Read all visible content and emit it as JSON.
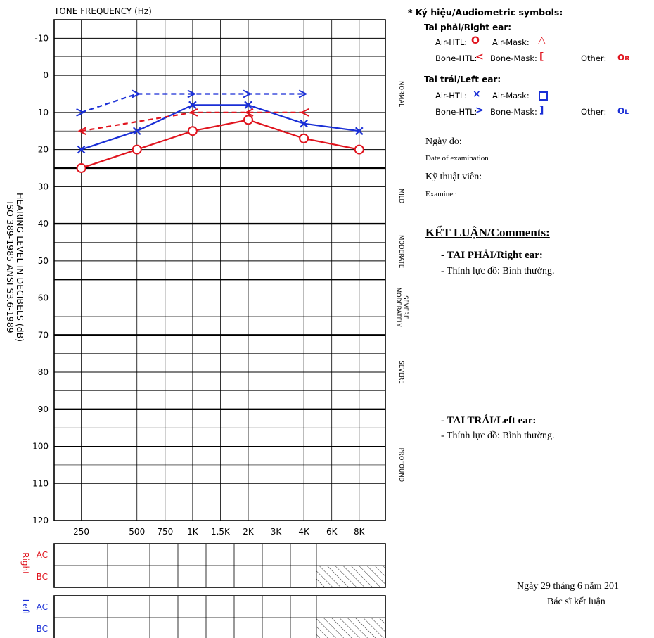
{
  "chart_data": {
    "type": "line",
    "title": "TONE FREQUENCY (Hz)",
    "ylabel_line1": "HEARING LEVEL IN DECIBELS (dB)",
    "ylabel_line2": "ISO 389-1985 ANSI S3.6-1989",
    "x_ticks": [
      "250",
      "500",
      "750",
      "1K",
      "1.5K",
      "2K",
      "3K",
      "4K",
      "6K",
      "8K"
    ],
    "y_ticks": [
      "-10",
      "0",
      "10",
      "20",
      "30",
      "40",
      "50",
      "60",
      "70",
      "80",
      "90",
      "100",
      "110",
      "120"
    ],
    "ylim": [
      -15,
      120
    ],
    "y_inverted": true,
    "zones": [
      "NORMAL",
      "MILD",
      "MODERATE",
      "MODERATELY SEVERE",
      "SEVERE",
      "PROFOUND"
    ],
    "series": [
      {
        "name": "Air-HTL",
        "ear": "right",
        "color": "#e0141e",
        "style": "solid",
        "marker": "circle",
        "x": [
          "250",
          "500",
          "1K",
          "2K",
          "4K",
          "8K"
        ],
        "values": [
          25,
          20,
          15,
          12,
          17,
          20
        ]
      },
      {
        "name": "Air-HTL",
        "ear": "left",
        "color": "#1a2fd6",
        "style": "solid",
        "marker": "x",
        "x": [
          "250",
          "500",
          "1K",
          "2K",
          "4K",
          "8K"
        ],
        "values": [
          20,
          15,
          8,
          8,
          13,
          15
        ]
      },
      {
        "name": "Bone-HTL",
        "ear": "right",
        "color": "#e0141e",
        "style": "dashed",
        "marker": "<",
        "x": [
          "250",
          "1K",
          "2K",
          "4K"
        ],
        "values": [
          15,
          10,
          10,
          10
        ]
      },
      {
        "name": "Bone-HTL",
        "ear": "left",
        "color": "#1a2fd6",
        "style": "dashed",
        "marker": ">",
        "x": [
          "250",
          "500",
          "1K",
          "2K",
          "4K"
        ],
        "values": [
          10,
          5,
          5,
          5,
          5
        ]
      }
    ]
  },
  "table": {
    "right_label": "Right",
    "left_label": "Left",
    "ac": "AC",
    "bc": "BC"
  },
  "legend": {
    "title": "* Ký hiệu/Audiometric symbols:",
    "right_ear": "Tai phải/Right ear:",
    "left_ear": "Tai trái/Left ear:",
    "air_htl": "Air-HTL:",
    "air_mask": "Air-Mask:",
    "bone_htl": "Bone-HTL:",
    "bone_mask": "Bone-Mask:",
    "other": "Other:",
    "other_r": "O",
    "other_r_sub": "R",
    "other_l": "O",
    "other_l_sub": "L",
    "colors": {
      "right": "#e0141e",
      "left": "#1a2fd6"
    }
  },
  "exam": {
    "date_vi": "Ngày đo:",
    "date_en": "Date of examination",
    "examiner_vi": "Kỹ thuật viên:",
    "examiner_en": "Examiner"
  },
  "comments": {
    "title": "KẾT LUẬN/Comments:",
    "right_heading": "- TAI PHẢI/Right ear:",
    "right_text": "- Thính lực đồ: Bình thường.",
    "left_heading": "- TAI TRÁI/Left ear:",
    "left_text": "- Thính lực đồ: Bình thường."
  },
  "footer": {
    "date": "Ngày 29 tháng 6 năm 201",
    "doctor": "Bác sĩ kết luận"
  }
}
